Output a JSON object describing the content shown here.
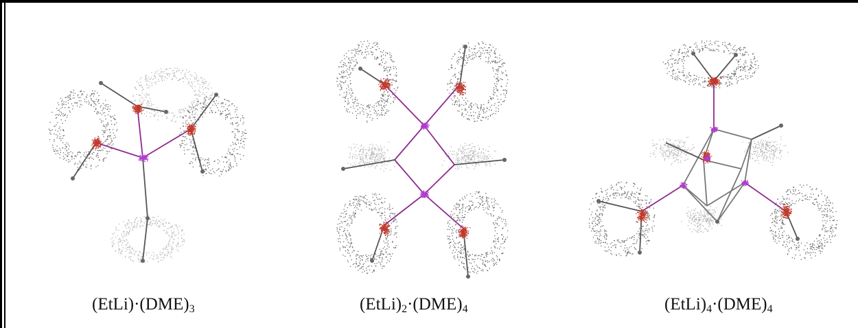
{
  "figure": {
    "panels": [
      {
        "id": "monomer",
        "caption_parts": {
          "a": "(EtLi)·(DME)",
          "a_sub": "3"
        }
      },
      {
        "id": "dimer",
        "caption_parts": {
          "a": "(EtLi)",
          "a_sub": "2",
          "b": "·(DME)",
          "b_sub": "4"
        }
      },
      {
        "id": "tetramer",
        "caption_parts": {
          "a": "(EtLi)",
          "a_sub": "4",
          "b": "·(DME)",
          "b_sub": "4"
        }
      }
    ],
    "colors": {
      "oxygen_cloud": "#c0392b",
      "lithium_cloud": "#b23ccf",
      "carbon_cloud_dark": "#6b6b6b",
      "carbon_cloud_light": "#b8b8b8",
      "bond": "#555555",
      "li_bond": "#8e2a8e"
    }
  }
}
